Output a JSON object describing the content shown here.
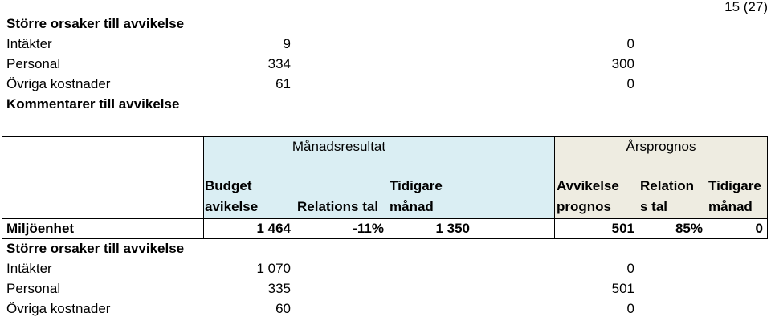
{
  "page_number": "15 (27)",
  "top_block": {
    "heading": "Större orsaker till avvikelse",
    "rows": [
      [
        "Intäkter",
        "9",
        "0"
      ],
      [
        "Personal",
        "334",
        "300"
      ],
      [
        "Övriga kostnader",
        "61",
        "0"
      ]
    ]
  },
  "comment_heading": "Kommentarer till avvikelse",
  "table": {
    "group_headers": [
      "Månadsresultat",
      "Årsprognos"
    ],
    "column_headers": [
      [
        "Budget",
        "avikelse"
      ],
      [
        "Relations tal"
      ],
      [
        "Tidigare",
        "månad"
      ],
      [
        "Avvikelse",
        "prognos"
      ],
      [
        "Relation",
        "s tal"
      ],
      [
        "Tidigare",
        "månad"
      ]
    ],
    "rows": [
      [
        "Miljöenhet",
        "1 464",
        "-11%",
        "1 350",
        "501",
        "85%",
        "0"
      ]
    ]
  },
  "bottom_block": {
    "heading": "Större orsaker till avvikelse",
    "rows": [
      [
        "Intäkter",
        "1 070",
        "0"
      ],
      [
        "Personal",
        "335",
        "501"
      ],
      [
        "Övriga kostnader",
        "60",
        "0"
      ]
    ]
  }
}
